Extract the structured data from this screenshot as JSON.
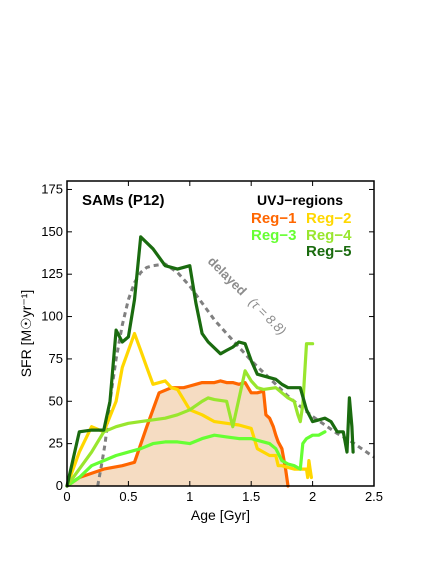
{
  "chart_data": {
    "type": "line",
    "title": "SAMs (P12)",
    "xlabel": "Age [Gyr]",
    "ylabel": "SFR [M☉yr⁻¹]",
    "xlim": [
      0,
      2.5
    ],
    "ylim": [
      0,
      180
    ],
    "xticks": [
      0,
      0.5,
      1,
      1.5,
      2,
      2.5
    ],
    "xtick_labels": [
      "0",
      "0.5",
      "1",
      "1.5",
      "2",
      "2.5"
    ],
    "yticks": [
      0,
      25,
      50,
      75,
      100,
      125,
      150,
      175
    ],
    "ytick_labels": [
      "0",
      "25",
      "50",
      "75",
      "100",
      "125",
      "150",
      "175"
    ],
    "grid": false,
    "legend": {
      "title": "UVJ−regions",
      "placement": "top-right",
      "entries": [
        "Reg−1",
        "Reg−2",
        "Reg−3",
        "Reg−4",
        "Reg−5"
      ]
    },
    "annotation": {
      "text": "delayed",
      "tau_text": "(τ = 8.8)"
    },
    "series": [
      {
        "name": "Reg−1",
        "color": "#ff6600",
        "filled": true,
        "fill_color": "#f5dcc2",
        "points": [
          [
            0.0,
            0
          ],
          [
            0.1,
            5
          ],
          [
            0.3,
            10
          ],
          [
            0.45,
            12
          ],
          [
            0.55,
            14
          ],
          [
            0.65,
            35
          ],
          [
            0.75,
            55
          ],
          [
            0.85,
            58
          ],
          [
            0.95,
            58
          ],
          [
            1.0,
            59
          ],
          [
            1.05,
            60
          ],
          [
            1.1,
            61
          ],
          [
            1.15,
            61
          ],
          [
            1.2,
            61
          ],
          [
            1.25,
            62
          ],
          [
            1.3,
            61
          ],
          [
            1.35,
            61
          ],
          [
            1.4,
            60
          ],
          [
            1.45,
            61
          ],
          [
            1.5,
            55
          ],
          [
            1.55,
            55
          ],
          [
            1.6,
            56
          ],
          [
            1.62,
            42
          ],
          [
            1.65,
            40
          ],
          [
            1.68,
            35
          ],
          [
            1.7,
            30
          ],
          [
            1.72,
            26
          ],
          [
            1.75,
            22
          ],
          [
            1.78,
            10
          ],
          [
            1.8,
            0
          ]
        ]
      },
      {
        "name": "Reg−2",
        "color": "#ffd700",
        "filled": false,
        "points": [
          [
            0.0,
            0
          ],
          [
            0.1,
            20
          ],
          [
            0.2,
            35
          ],
          [
            0.3,
            32
          ],
          [
            0.4,
            50
          ],
          [
            0.45,
            70
          ],
          [
            0.55,
            90
          ],
          [
            0.6,
            80
          ],
          [
            0.65,
            70
          ],
          [
            0.7,
            60
          ],
          [
            0.8,
            62
          ],
          [
            0.85,
            58
          ],
          [
            0.9,
            57
          ],
          [
            1.0,
            45
          ],
          [
            1.1,
            42
          ],
          [
            1.15,
            40
          ],
          [
            1.2,
            38
          ],
          [
            1.3,
            37
          ],
          [
            1.4,
            36
          ],
          [
            1.5,
            34
          ],
          [
            1.55,
            22
          ],
          [
            1.6,
            20
          ],
          [
            1.65,
            18
          ],
          [
            1.7,
            18
          ],
          [
            1.72,
            12
          ],
          [
            1.75,
            12
          ],
          [
            1.8,
            11
          ],
          [
            1.85,
            10
          ],
          [
            1.9,
            10
          ],
          [
            1.95,
            10
          ],
          [
            1.96,
            5
          ],
          [
            1.97,
            15
          ],
          [
            1.98,
            10
          ],
          [
            1.99,
            5
          ]
        ]
      },
      {
        "name": "Reg−3",
        "color": "#66ff33",
        "filled": false,
        "points": [
          [
            0.0,
            0
          ],
          [
            0.1,
            5
          ],
          [
            0.2,
            12
          ],
          [
            0.3,
            15
          ],
          [
            0.4,
            18
          ],
          [
            0.5,
            20
          ],
          [
            0.6,
            22
          ],
          [
            0.7,
            25
          ],
          [
            0.8,
            26
          ],
          [
            0.9,
            26
          ],
          [
            1.0,
            25
          ],
          [
            1.1,
            28
          ],
          [
            1.2,
            30
          ],
          [
            1.3,
            29
          ],
          [
            1.4,
            28
          ],
          [
            1.5,
            28
          ],
          [
            1.55,
            27
          ],
          [
            1.6,
            26
          ],
          [
            1.65,
            25
          ],
          [
            1.7,
            22
          ],
          [
            1.75,
            15
          ],
          [
            1.8,
            13
          ],
          [
            1.85,
            12
          ],
          [
            1.9,
            10
          ],
          [
            1.92,
            25
          ],
          [
            1.95,
            28
          ],
          [
            2.0,
            30
          ],
          [
            2.05,
            30
          ],
          [
            2.1,
            32
          ]
        ]
      },
      {
        "name": "Reg−4",
        "color": "#99e62e",
        "filled": false,
        "points": [
          [
            0.0,
            0
          ],
          [
            0.1,
            10
          ],
          [
            0.2,
            20
          ],
          [
            0.3,
            32
          ],
          [
            0.4,
            35
          ],
          [
            0.5,
            37
          ],
          [
            0.6,
            38
          ],
          [
            0.8,
            40
          ],
          [
            0.9,
            42
          ],
          [
            1.0,
            45
          ],
          [
            1.1,
            50
          ],
          [
            1.15,
            52
          ],
          [
            1.2,
            51
          ],
          [
            1.3,
            50
          ],
          [
            1.35,
            35
          ],
          [
            1.45,
            68
          ],
          [
            1.5,
            62
          ],
          [
            1.55,
            58
          ],
          [
            1.6,
            57
          ],
          [
            1.7,
            58
          ],
          [
            1.75,
            55
          ],
          [
            1.8,
            52
          ],
          [
            1.85,
            50
          ],
          [
            1.88,
            42
          ],
          [
            1.9,
            38
          ],
          [
            1.92,
            48
          ],
          [
            1.95,
            84
          ],
          [
            1.98,
            84
          ],
          [
            2.0,
            84
          ]
        ]
      },
      {
        "name": "Reg−5",
        "color": "#1a6b0f",
        "filled": false,
        "points": [
          [
            0.0,
            0
          ],
          [
            0.1,
            32
          ],
          [
            0.2,
            33
          ],
          [
            0.3,
            33
          ],
          [
            0.35,
            50
          ],
          [
            0.4,
            92
          ],
          [
            0.45,
            85
          ],
          [
            0.5,
            88
          ],
          [
            0.55,
            110
          ],
          [
            0.6,
            147
          ],
          [
            0.7,
            140
          ],
          [
            0.8,
            130
          ],
          [
            0.9,
            128
          ],
          [
            1.0,
            130
          ],
          [
            1.05,
            108
          ],
          [
            1.1,
            90
          ],
          [
            1.15,
            85
          ],
          [
            1.25,
            78
          ],
          [
            1.3,
            80
          ],
          [
            1.35,
            82
          ],
          [
            1.4,
            85
          ],
          [
            1.45,
            84
          ],
          [
            1.5,
            74
          ],
          [
            1.55,
            66
          ],
          [
            1.6,
            65
          ],
          [
            1.7,
            63
          ],
          [
            1.75,
            60
          ],
          [
            1.8,
            58
          ],
          [
            1.85,
            58
          ],
          [
            1.9,
            58
          ],
          [
            1.95,
            45
          ],
          [
            2.0,
            38
          ],
          [
            2.05,
            39
          ],
          [
            2.1,
            40
          ],
          [
            2.15,
            38
          ],
          [
            2.2,
            32
          ],
          [
            2.25,
            32
          ],
          [
            2.28,
            20
          ],
          [
            2.3,
            52
          ],
          [
            2.32,
            35
          ],
          [
            2.33,
            20
          ]
        ]
      },
      {
        "name": "delayed (τ = 8.8)",
        "color": "#808080",
        "dashed": true,
        "filled": false,
        "points": [
          [
            0.25,
            0
          ],
          [
            0.28,
            12
          ],
          [
            0.31,
            25
          ],
          [
            0.35,
            50
          ],
          [
            0.4,
            75
          ],
          [
            0.45,
            95
          ],
          [
            0.5,
            110
          ],
          [
            0.55,
            120
          ],
          [
            0.6,
            126
          ],
          [
            0.65,
            129
          ],
          [
            0.7,
            130
          ],
          [
            0.8,
            131
          ],
          [
            0.9,
            126
          ],
          [
            1.0,
            118
          ],
          [
            1.1,
            108
          ],
          [
            1.2,
            98
          ],
          [
            1.3,
            90
          ],
          [
            1.4,
            82
          ],
          [
            1.5,
            74
          ],
          [
            1.6,
            67
          ],
          [
            1.7,
            60
          ],
          [
            1.8,
            53
          ],
          [
            1.9,
            47
          ],
          [
            2.0,
            41
          ],
          [
            2.1,
            36
          ],
          [
            2.2,
            31
          ],
          [
            2.3,
            27
          ],
          [
            2.4,
            22
          ],
          [
            2.5,
            17
          ]
        ]
      }
    ]
  }
}
